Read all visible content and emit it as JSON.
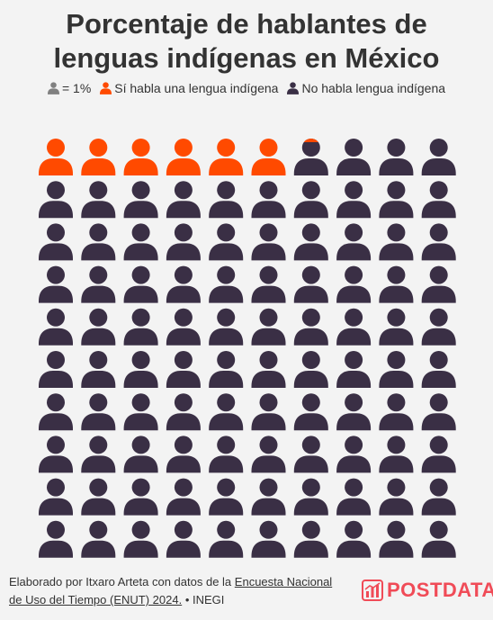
{
  "title": {
    "line1": "Porcentaje de hablantes de",
    "line2": "lenguas indígenas en México"
  },
  "legend": {
    "unit_label": "= 1%",
    "speaks_label": "Sí habla una lengua indígena",
    "not_speaks_label": "No habla lengua indígena"
  },
  "colors": {
    "speaks": "#ff4a00",
    "not_speaks": "#3a2f45",
    "unit_icon": "#808080",
    "background": "#f3f3f3",
    "text": "#333333",
    "logo": "#f04b57"
  },
  "chart_data": {
    "type": "waffle",
    "unit": "1%",
    "total_icons": 100,
    "columns": 10,
    "rows": 10,
    "series": [
      {
        "name": "Sí habla una lengua indígena",
        "value": 6.2
      },
      {
        "name": "No habla lengua indígena",
        "value": 93.8
      }
    ],
    "icon": "person-icon"
  },
  "footer": {
    "credit_prefix": "Elaborado por Itxaro Arteta con datos de la",
    "source_link": "Encuesta Nacional de Uso del Tiempo (ENUT) 2024.",
    "source_suffix": "• INEGI"
  },
  "logo": {
    "text": "POSTDATA",
    "icon": "bar-chart-icon"
  }
}
